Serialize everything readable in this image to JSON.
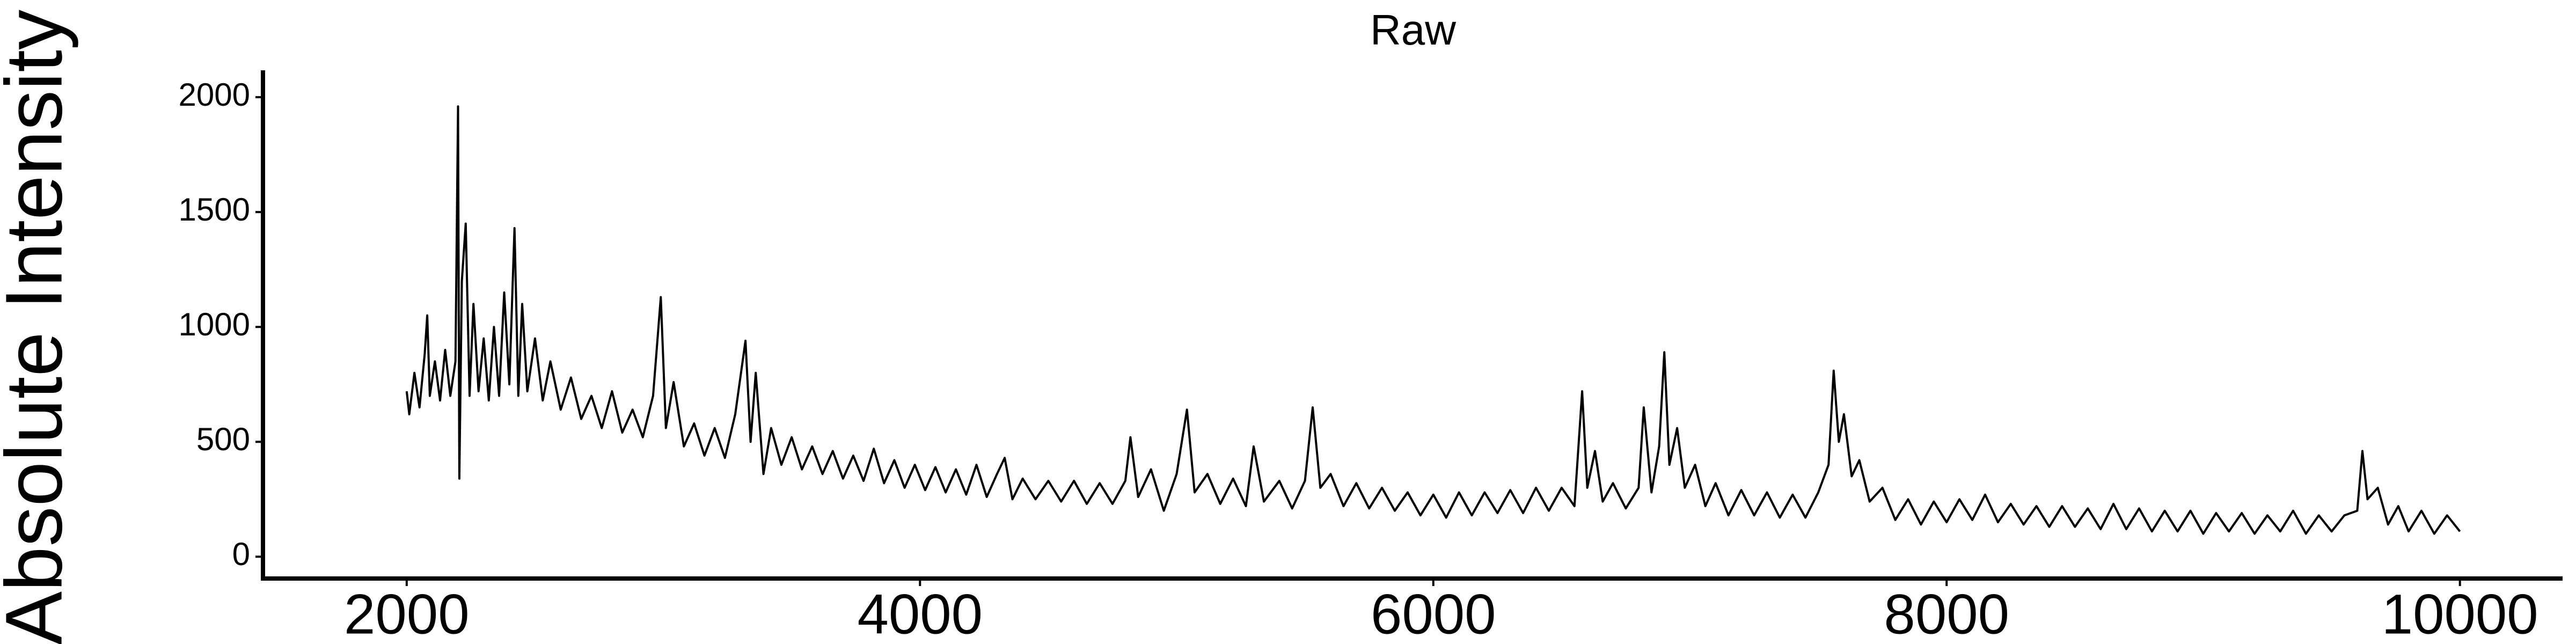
{
  "chart_data": {
    "type": "line",
    "title": "Raw",
    "ylabel": "Absolute Intensity",
    "color": "#000000",
    "xlim": [
      1440,
      10400
    ],
    "ylim": [
      -95,
      2117
    ],
    "xticks": [
      2000,
      4000,
      6000,
      8000,
      10000
    ],
    "yticks": [
      0,
      500,
      1000,
      1500,
      2000
    ],
    "x": [
      2000,
      2010,
      2030,
      2050,
      2070,
      2080,
      2090,
      2110,
      2130,
      2150,
      2170,
      2190,
      2200,
      2205,
      2215,
      2230,
      2245,
      2260,
      2280,
      2300,
      2320,
      2340,
      2360,
      2380,
      2400,
      2420,
      2435,
      2450,
      2470,
      2500,
      2530,
      2560,
      2600,
      2640,
      2680,
      2720,
      2760,
      2800,
      2840,
      2880,
      2920,
      2960,
      2990,
      3010,
      3040,
      3080,
      3120,
      3160,
      3200,
      3240,
      3280,
      3320,
      3340,
      3360,
      3390,
      3420,
      3460,
      3500,
      3540,
      3580,
      3620,
      3660,
      3700,
      3740,
      3780,
      3820,
      3860,
      3900,
      3940,
      3980,
      4020,
      4060,
      4100,
      4140,
      4180,
      4220,
      4260,
      4300,
      4330,
      4360,
      4400,
      4450,
      4500,
      4550,
      4600,
      4650,
      4700,
      4750,
      4800,
      4820,
      4850,
      4900,
      4950,
      5000,
      5040,
      5070,
      5120,
      5170,
      5220,
      5270,
      5300,
      5340,
      5400,
      5450,
      5500,
      5530,
      5560,
      5600,
      5650,
      5700,
      5750,
      5800,
      5850,
      5900,
      5950,
      6000,
      6050,
      6100,
      6150,
      6200,
      6250,
      6300,
      6350,
      6400,
      6450,
      6500,
      6550,
      6580,
      6600,
      6630,
      6660,
      6700,
      6750,
      6800,
      6820,
      6850,
      6880,
      6900,
      6920,
      6950,
      6980,
      7020,
      7060,
      7100,
      7150,
      7200,
      7250,
      7300,
      7350,
      7400,
      7450,
      7500,
      7540,
      7560,
      7580,
      7600,
      7630,
      7660,
      7700,
      7750,
      7800,
      7850,
      7900,
      7950,
      8000,
      8050,
      8100,
      8150,
      8200,
      8250,
      8300,
      8350,
      8400,
      8450,
      8500,
      8550,
      8600,
      8650,
      8700,
      8750,
      8800,
      8850,
      8900,
      8950,
      9000,
      9050,
      9100,
      9150,
      9200,
      9250,
      9300,
      9350,
      9400,
      9450,
      9500,
      9550,
      9600,
      9620,
      9640,
      9680,
      9720,
      9760,
      9800,
      9850,
      9900,
      9950,
      10000
    ],
    "values": [
      720,
      620,
      800,
      650,
      880,
      1050,
      700,
      850,
      680,
      900,
      700,
      850,
      1960,
      340,
      1200,
      1450,
      700,
      1100,
      720,
      950,
      680,
      1000,
      700,
      1150,
      750,
      1430,
      700,
      1100,
      720,
      950,
      680,
      850,
      640,
      780,
      600,
      700,
      560,
      720,
      540,
      640,
      520,
      700,
      1130,
      560,
      760,
      480,
      580,
      440,
      560,
      430,
      620,
      940,
      500,
      800,
      360,
      560,
      400,
      520,
      380,
      480,
      360,
      460,
      340,
      440,
      330,
      470,
      320,
      420,
      300,
      400,
      290,
      390,
      280,
      380,
      270,
      400,
      260,
      360,
      430,
      250,
      340,
      250,
      330,
      240,
      330,
      230,
      320,
      230,
      330,
      520,
      260,
      380,
      200,
      360,
      640,
      280,
      360,
      230,
      340,
      220,
      480,
      240,
      330,
      210,
      330,
      650,
      300,
      360,
      220,
      320,
      210,
      300,
      200,
      280,
      180,
      270,
      170,
      280,
      180,
      280,
      190,
      290,
      190,
      300,
      200,
      300,
      220,
      720,
      300,
      460,
      240,
      320,
      210,
      300,
      650,
      280,
      480,
      890,
      400,
      560,
      300,
      400,
      220,
      320,
      180,
      290,
      180,
      280,
      170,
      270,
      170,
      280,
      400,
      810,
      500,
      620,
      350,
      420,
      240,
      300,
      160,
      250,
      140,
      240,
      150,
      250,
      160,
      270,
      150,
      230,
      140,
      220,
      130,
      220,
      130,
      210,
      120,
      230,
      120,
      210,
      110,
      200,
      110,
      200,
      100,
      190,
      110,
      190,
      100,
      180,
      110,
      200,
      100,
      180,
      110,
      180,
      200,
      460,
      250,
      300,
      140,
      220,
      110,
      200,
      100,
      180,
      110
    ]
  }
}
